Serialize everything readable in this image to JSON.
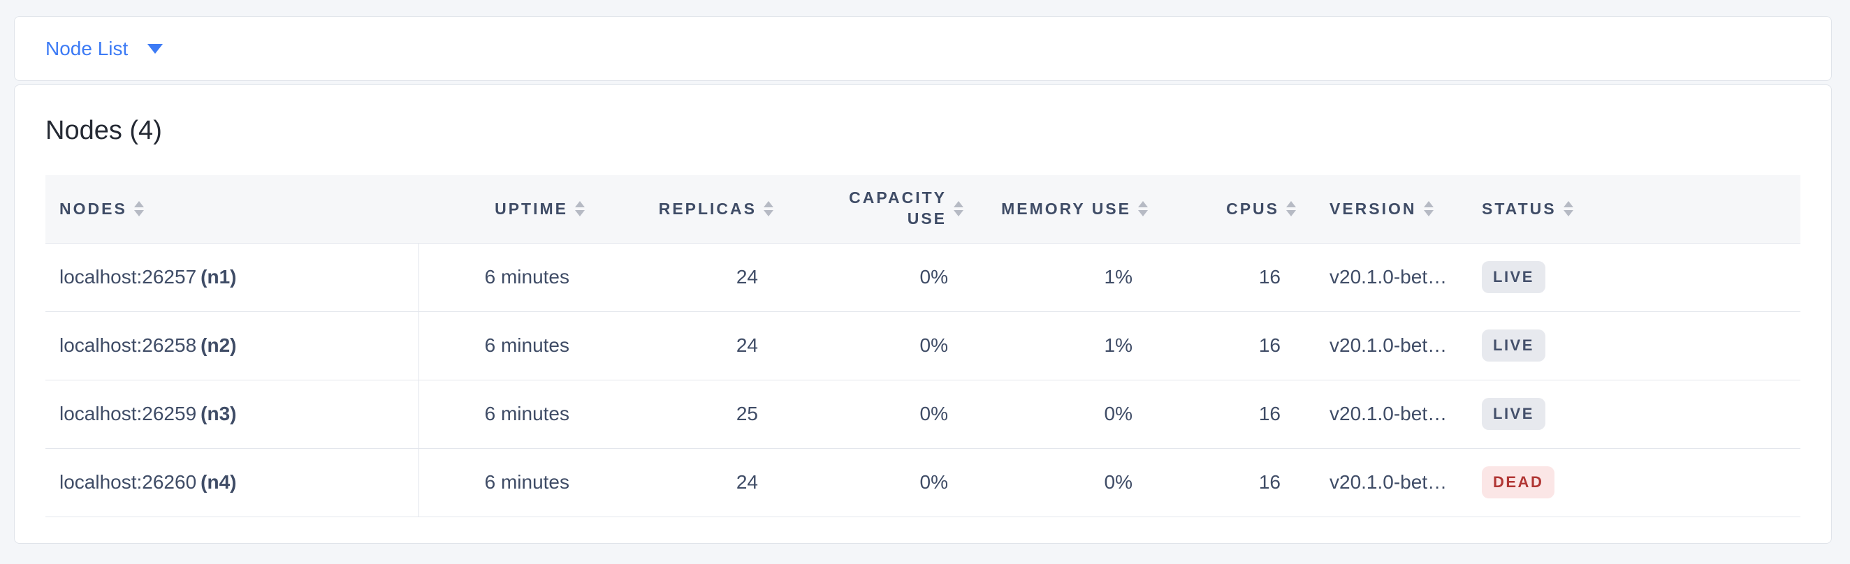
{
  "colors": {
    "accent": "#3d7bf5",
    "page_background": "#f4f6f9",
    "header_row_background": "#f6f7f9",
    "live_badge_bg": "#e7e9ee",
    "live_badge_text": "#44506b",
    "dead_badge_bg": "#fbe6e6",
    "dead_badge_text": "#b13634"
  },
  "icons": {
    "dropdown_caret": "caret-down-icon",
    "column_sort": "sort-icon"
  },
  "toolbar": {
    "view_dropdown_label": "Node List"
  },
  "main": {
    "title": "Nodes (4)",
    "table": {
      "columns": [
        {
          "label": "NODES",
          "align": "left"
        },
        {
          "label": "UPTIME",
          "align": "right"
        },
        {
          "label": "REPLICAS",
          "align": "right"
        },
        {
          "label": "CAPACITY USE",
          "align": "right"
        },
        {
          "label": "MEMORY USE",
          "align": "right"
        },
        {
          "label": "CPUS",
          "align": "right"
        },
        {
          "label": "VERSION",
          "align": "left"
        },
        {
          "label": "STATUS",
          "align": "left"
        }
      ],
      "rows": [
        {
          "address": "localhost:26257",
          "node_id": "(n1)",
          "uptime": "6 minutes",
          "replicas": "24",
          "capacity_use": "0%",
          "memory_use": "1%",
          "cpus": "16",
          "version": "v20.1.0-bet…",
          "status": "LIVE"
        },
        {
          "address": "localhost:26258",
          "node_id": "(n2)",
          "uptime": "6 minutes",
          "replicas": "24",
          "capacity_use": "0%",
          "memory_use": "1%",
          "cpus": "16",
          "version": "v20.1.0-bet…",
          "status": "LIVE"
        },
        {
          "address": "localhost:26259",
          "node_id": "(n3)",
          "uptime": "6 minutes",
          "replicas": "25",
          "capacity_use": "0%",
          "memory_use": "0%",
          "cpus": "16",
          "version": "v20.1.0-bet…",
          "status": "LIVE"
        },
        {
          "address": "localhost:26260",
          "node_id": "(n4)",
          "uptime": "6 minutes",
          "replicas": "24",
          "capacity_use": "0%",
          "memory_use": "0%",
          "cpus": "16",
          "version": "v20.1.0-bet…",
          "status": "DEAD"
        }
      ]
    }
  }
}
